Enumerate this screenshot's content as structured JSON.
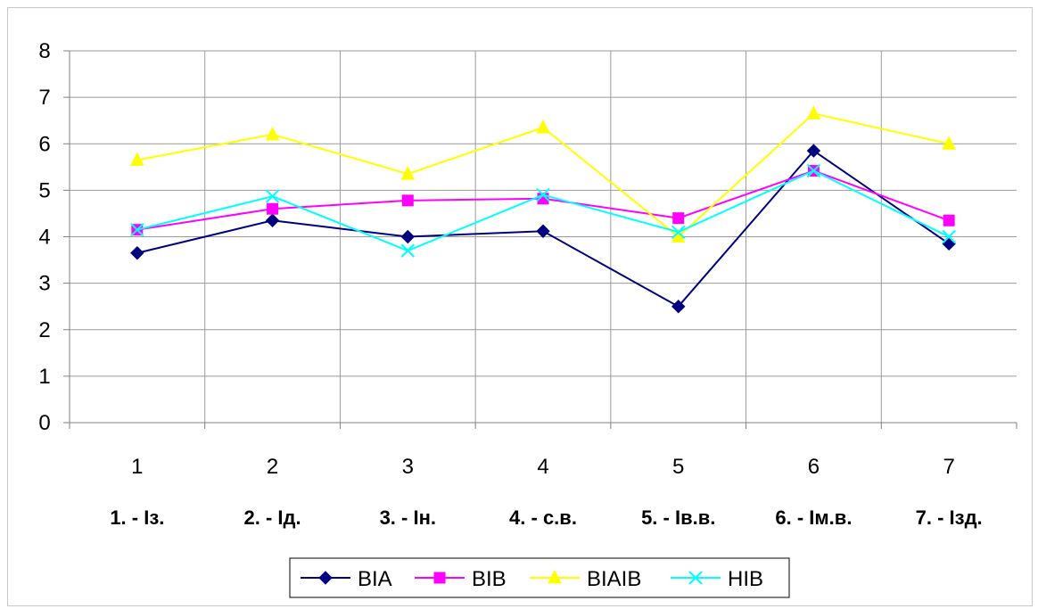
{
  "chart_data": {
    "type": "line",
    "x": [
      "1",
      "2",
      "3",
      "4",
      "5",
      "6",
      "7"
    ],
    "category_labels": [
      "1. - Із.",
      "2. - Ід.",
      "3. - Ін.",
      "4. - с.в.",
      "5. - Ів.в.",
      "6. - Ім.в.",
      "7. - Ізд."
    ],
    "ylim": [
      0,
      8
    ],
    "yticks": [
      "0",
      "1",
      "2",
      "3",
      "4",
      "5",
      "6",
      "7",
      "8"
    ],
    "grid": true,
    "legend_position": "bottom",
    "series": [
      {
        "name": "ВІА",
        "color": "#000080",
        "marker": "diamond",
        "values": [
          3.65,
          4.35,
          4.0,
          4.12,
          2.5,
          5.85,
          3.85
        ]
      },
      {
        "name": "ВІВ",
        "color": "#ff00ff",
        "marker": "square",
        "values": [
          4.15,
          4.6,
          4.78,
          4.82,
          4.4,
          5.42,
          4.35
        ]
      },
      {
        "name": "ВІАІВ",
        "color": "#ffff00",
        "marker": "triangle",
        "values": [
          5.65,
          6.2,
          5.35,
          6.35,
          4.0,
          6.65,
          6.0
        ]
      },
      {
        "name": "НІВ",
        "color": "#00ffff",
        "marker": "x",
        "values": [
          4.15,
          4.87,
          3.7,
          4.9,
          4.1,
          5.42,
          4.0
        ]
      }
    ]
  }
}
